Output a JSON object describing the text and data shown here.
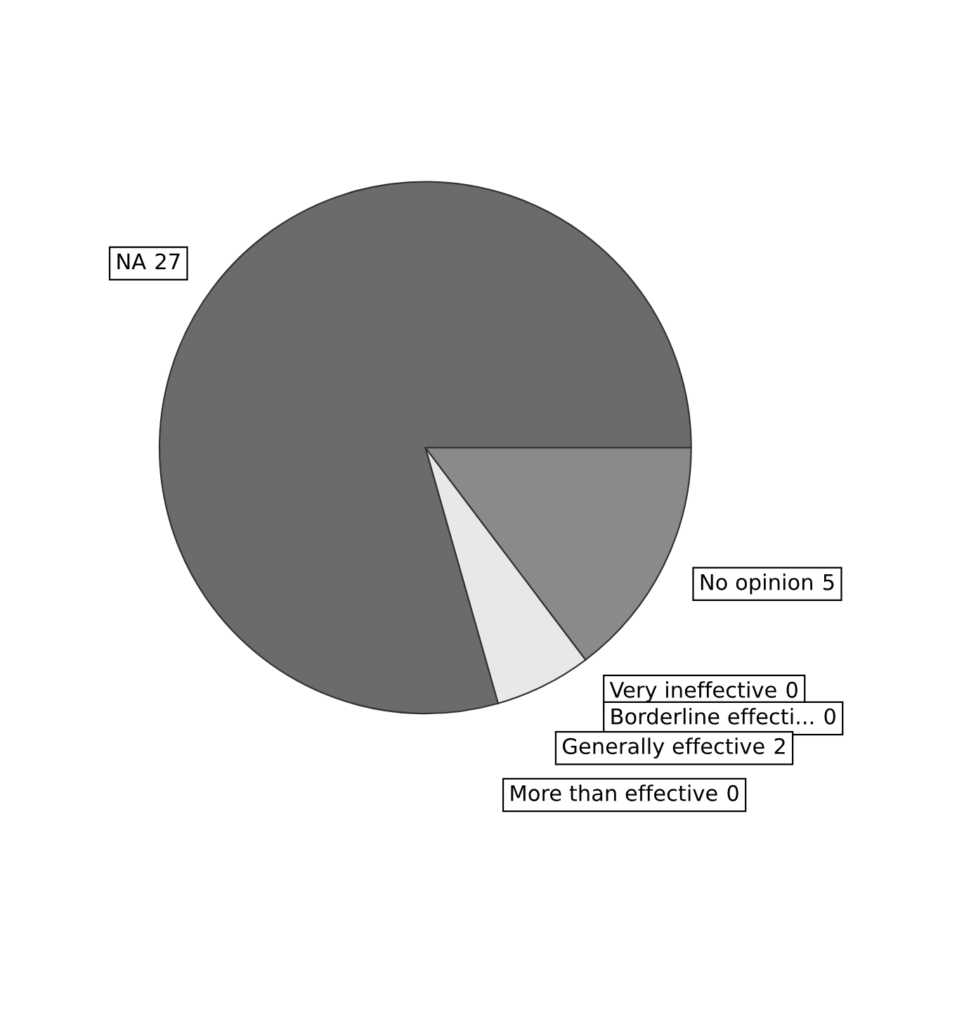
{
  "chart_data": {
    "type": "pie",
    "categories": [
      "No opinion",
      "Very ineffective",
      "Borderline effecti...",
      "Generally effective",
      "More than effective",
      "NA"
    ],
    "values": [
      5,
      0,
      0,
      2,
      0,
      27
    ],
    "colors": [
      "#8a8a8a",
      "#9a9a9a",
      "#a0a0a0",
      "#e8e8e8",
      "#b0b0b0",
      "#6b6b6b"
    ],
    "value_labels": [
      "5",
      "0",
      "0",
      "2",
      "0",
      "27"
    ]
  }
}
